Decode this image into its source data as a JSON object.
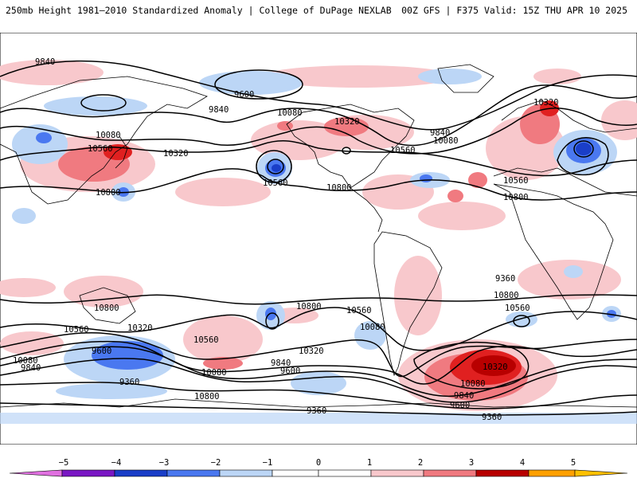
{
  "header": {
    "left_title": "250mb Height 1981—2010 Standardized Anomaly | College of DuPage NEXLAB",
    "right_title": "00Z GFS | F375 Valid: 15Z THU APR 10 2025"
  },
  "colors": {
    "neg5": "#e070e0",
    "neg4": "#7a17c4",
    "neg3": "#1a3ec8",
    "neg2": "#4a78f0",
    "neg1": "#bcd6f6",
    "zero": "#ffffff",
    "pos1": "#f8c8cc",
    "pos2": "#f07a80",
    "pos3": "#e02020",
    "pos4": "#b80000",
    "pos5": "#ffa000",
    "coast": "#000000",
    "contour": "#000000"
  },
  "colorbar": {
    "ticks": [
      "−5",
      "−4",
      "−3",
      "−2",
      "−1",
      "0",
      "1",
      "2",
      "3",
      "4",
      "5"
    ]
  },
  "contour_labels": [
    {
      "id": "l1",
      "text": "9840"
    },
    {
      "id": "l2",
      "text": "9600"
    },
    {
      "id": "l3",
      "text": "9840"
    },
    {
      "id": "l4",
      "text": "10080"
    },
    {
      "id": "l5",
      "text": "10080"
    },
    {
      "id": "l6",
      "text": "10560"
    },
    {
      "id": "l7",
      "text": "10320"
    },
    {
      "id": "l8",
      "text": "10800"
    },
    {
      "id": "l9",
      "text": "10560"
    },
    {
      "id": "l10",
      "text": "10320"
    },
    {
      "id": "l11",
      "text": "10800"
    },
    {
      "id": "l12",
      "text": "10560"
    },
    {
      "id": "l13",
      "text": "9840"
    },
    {
      "id": "l14",
      "text": "10080"
    },
    {
      "id": "l15",
      "text": "10320"
    },
    {
      "id": "l16",
      "text": "10560"
    },
    {
      "id": "l17",
      "text": "10800"
    },
    {
      "id": "l18",
      "text": "10800"
    },
    {
      "id": "l19",
      "text": "10800"
    },
    {
      "id": "l20",
      "text": "10560"
    },
    {
      "id": "l21",
      "text": "10320"
    },
    {
      "id": "l22",
      "text": "10080"
    },
    {
      "id": "l23",
      "text": "9840"
    },
    {
      "id": "l24",
      "text": "9600"
    },
    {
      "id": "l25",
      "text": "9360"
    },
    {
      "id": "l26",
      "text": "10560"
    },
    {
      "id": "l27",
      "text": "10080"
    },
    {
      "id": "l28",
      "text": "9840"
    },
    {
      "id": "l29",
      "text": "9600"
    },
    {
      "id": "l30",
      "text": "10320"
    },
    {
      "id": "l31",
      "text": "9360"
    },
    {
      "id": "l32",
      "text": "10800"
    },
    {
      "id": "l33",
      "text": "10560"
    },
    {
      "id": "l34",
      "text": "10080"
    },
    {
      "id": "l35",
      "text": "10320"
    },
    {
      "id": "l36",
      "text": "10080"
    },
    {
      "id": "l37",
      "text": "9840"
    },
    {
      "id": "l38",
      "text": "9600"
    },
    {
      "id": "l39",
      "text": "9360"
    },
    {
      "id": "l40",
      "text": "10800"
    },
    {
      "id": "l41",
      "text": "10560"
    },
    {
      "id": "l42",
      "text": "9360"
    }
  ]
}
